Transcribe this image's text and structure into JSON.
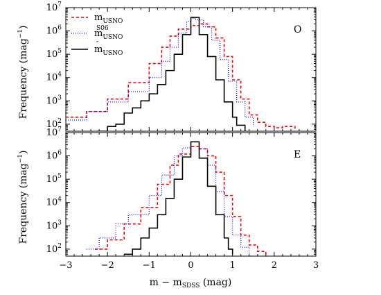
{
  "chart_data": {
    "type": "line",
    "xlabel": {
      "main": "m − m",
      "sub": "SDSS",
      "unit": " (mag)"
    },
    "ylabel": {
      "main": "Frequency (mag",
      "sup": "−1",
      "close": ")"
    },
    "xlim": [
      -3,
      3
    ],
    "ylim": [
      50,
      10000000
    ],
    "yscale": "log",
    "x_ticks": [
      -3,
      -2,
      -1,
      0,
      1,
      2,
      3
    ],
    "x_tick_labels": [
      "−3",
      "−2",
      "−1",
      "0",
      "1",
      "2",
      "3"
    ],
    "y_ticks": [
      100,
      1000,
      10000,
      100000,
      1000000,
      10000000
    ],
    "y_tick_labels": [
      {
        "base": "10",
        "exp": "2"
      },
      {
        "base": "10",
        "exp": "3"
      },
      {
        "base": "10",
        "exp": "4"
      },
      {
        "base": "10",
        "exp": "5"
      },
      {
        "base": "10",
        "exp": "6"
      },
      {
        "base": "10",
        "exp": "7"
      }
    ],
    "legend": {
      "placement": "top-left",
      "entries": [
        {
          "main": "m",
          "sub": "USNO",
          "sup": "",
          "color": "#ff0000",
          "dash": "4,3",
          "width": 1.6
        },
        {
          "main": "m",
          "sub": "USNO",
          "sup": "S06",
          "color": "#0000ff",
          "dash": "1,2",
          "width": 1.2
        },
        {
          "main": "m",
          "sub": "USNO",
          "sup": "″",
          "color": "#000000",
          "dash": "",
          "width": 1.6
        }
      ]
    },
    "panels": [
      {
        "tag": "O",
        "series": [
          {
            "style": 0,
            "points": [
              [
                -3.0,
                200
              ],
              [
                -2.5,
                350
              ],
              [
                -2.0,
                1200
              ],
              [
                -1.5,
                6000
              ],
              [
                -1.0,
                40000
              ],
              [
                -0.7,
                200000
              ],
              [
                -0.5,
                600000
              ],
              [
                -0.3,
                1200000
              ],
              [
                0.0,
                1700000
              ],
              [
                0.2,
                2000000
              ],
              [
                0.4,
                1500000
              ],
              [
                0.6,
                500000
              ],
              [
                0.8,
                80000
              ],
              [
                1.0,
                8000
              ],
              [
                1.2,
                1200
              ],
              [
                1.4,
                250
              ],
              [
                1.6,
                120
              ],
              [
                1.8,
                80
              ],
              [
                2.0,
                70
              ],
              [
                2.2,
                80
              ],
              [
                2.5,
                55
              ]
            ]
          },
          {
            "style": 1,
            "points": [
              [
                -3.0,
                150
              ],
              [
                -2.5,
                350
              ],
              [
                -2.0,
                900
              ],
              [
                -1.5,
                2500
              ],
              [
                -1.0,
                10000
              ],
              [
                -0.7,
                50000
              ],
              [
                -0.5,
                200000
              ],
              [
                -0.3,
                800000
              ],
              [
                -0.1,
                2500000
              ],
              [
                0.0,
                3500000
              ],
              [
                0.1,
                3000000
              ],
              [
                0.3,
                1500000
              ],
              [
                0.5,
                400000
              ],
              [
                0.7,
                60000
              ],
              [
                0.9,
                7000
              ],
              [
                1.1,
                900
              ],
              [
                1.3,
                200
              ],
              [
                1.5,
                80
              ]
            ]
          },
          {
            "style": 2,
            "points": [
              [
                -2.25,
                50
              ],
              [
                -2.0,
                80
              ],
              [
                -1.8,
                100
              ],
              [
                -1.6,
                300
              ],
              [
                -1.4,
                500
              ],
              [
                -1.2,
                1000
              ],
              [
                -1.0,
                2000
              ],
              [
                -0.8,
                5000
              ],
              [
                -0.6,
                20000
              ],
              [
                -0.4,
                100000
              ],
              [
                -0.2,
                700000
              ],
              [
                0.0,
                3800000
              ],
              [
                0.2,
                700000
              ],
              [
                0.4,
                80000
              ],
              [
                0.6,
                8000
              ],
              [
                0.8,
                900
              ],
              [
                1.0,
                200
              ],
              [
                1.1,
                90
              ],
              [
                1.3,
                50
              ]
            ]
          }
        ]
      },
      {
        "tag": "E",
        "series": [
          {
            "style": 0,
            "points": [
              [
                -2.3,
                100
              ],
              [
                -2.0,
                250
              ],
              [
                -1.6,
                1200
              ],
              [
                -1.2,
                6000
              ],
              [
                -0.8,
                60000
              ],
              [
                -0.5,
                400000
              ],
              [
                -0.3,
                1200000
              ],
              [
                0.0,
                2500000
              ],
              [
                0.2,
                2000000
              ],
              [
                0.4,
                1000000
              ],
              [
                0.6,
                200000
              ],
              [
                0.8,
                20000
              ],
              [
                1.0,
                2500
              ],
              [
                1.2,
                400
              ],
              [
                1.4,
                150
              ],
              [
                1.6,
                80
              ],
              [
                1.8,
                55
              ]
            ]
          },
          {
            "style": 1,
            "points": [
              [
                -2.5,
                100
              ],
              [
                -2.2,
                300
              ],
              [
                -1.8,
                1200
              ],
              [
                -1.5,
                3000
              ],
              [
                -1.0,
                20000
              ],
              [
                -0.7,
                150000
              ],
              [
                -0.4,
                1000000
              ],
              [
                -0.2,
                2200000
              ],
              [
                0.0,
                4000000
              ],
              [
                0.2,
                2000000
              ],
              [
                0.4,
                400000
              ],
              [
                0.6,
                30000
              ],
              [
                0.8,
                2500
              ],
              [
                1.0,
                400
              ],
              [
                1.2,
                120
              ],
              [
                1.4,
                60
              ]
            ]
          },
          {
            "style": 2,
            "points": [
              [
                -1.6,
                60
              ],
              [
                -1.4,
                100
              ],
              [
                -1.2,
                300
              ],
              [
                -1.0,
                800
              ],
              [
                -0.8,
                3000
              ],
              [
                -0.6,
                15000
              ],
              [
                -0.4,
                100000
              ],
              [
                -0.2,
                900000
              ],
              [
                0.0,
                4000000
              ],
              [
                0.2,
                800000
              ],
              [
                0.4,
                50000
              ],
              [
                0.6,
                3000
              ],
              [
                0.8,
                300
              ],
              [
                0.9,
                100
              ],
              [
                1.0,
                60
              ]
            ]
          }
        ]
      }
    ]
  }
}
